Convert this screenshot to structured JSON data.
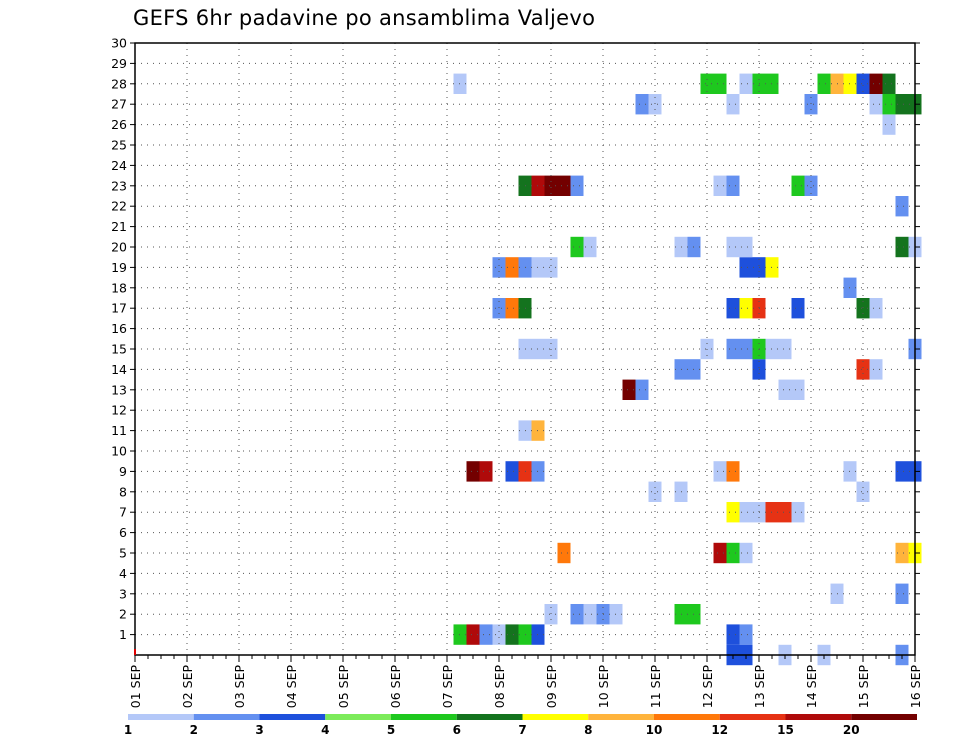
{
  "chart_data": {
    "type": "heatmap",
    "title": "GEFS 6hr padavine po ansamblima Valjevo",
    "xlabel": "",
    "ylabel": "",
    "x_tick_labels": [
      "01 SEP",
      "02 SEP",
      "03 SEP",
      "04 SEP",
      "05 SEP",
      "06 SEP",
      "07 SEP",
      "08 SEP",
      "09 SEP",
      "10 SEP",
      "11 SEP",
      "12 SEP",
      "13 SEP",
      "14 SEP",
      "15 SEP",
      "16 SEP"
    ],
    "y_tick_labels": [
      "1",
      "2",
      "3",
      "4",
      "5",
      "6",
      "7",
      "8",
      "9",
      "10",
      "11",
      "12",
      "13",
      "14",
      "15",
      "16",
      "17",
      "18",
      "19",
      "20",
      "21",
      "22",
      "23",
      "24",
      "25",
      "26",
      "27",
      "28",
      "29",
      "30"
    ],
    "xlim": [
      0,
      60
    ],
    "ylim": [
      0,
      30
    ],
    "grid": true,
    "legend": {
      "placement": "bottom",
      "labels": [
        "1",
        "2",
        "3",
        "4",
        "5",
        "6",
        "7",
        "8",
        "10",
        "12",
        "15",
        "20"
      ],
      "colors": [
        "#b4c8f8",
        "#6490f0",
        "#1e50dc",
        "#7ceb5a",
        "#1ec81e",
        "#14731e",
        "#ffff00",
        "#ffb43c",
        "#ff780a",
        "#e63214",
        "#af0a0a",
        "#730000"
      ]
    },
    "cells": [
      {
        "x": 25,
        "y": 1,
        "v": "5"
      },
      {
        "x": 26,
        "y": 1,
        "v": "15"
      },
      {
        "x": 27,
        "y": 1,
        "v": "2"
      },
      {
        "x": 28,
        "y": 1,
        "v": "1"
      },
      {
        "x": 29,
        "y": 1,
        "v": "6"
      },
      {
        "x": 30,
        "y": 1,
        "v": "5"
      },
      {
        "x": 31,
        "y": 1,
        "v": "3"
      },
      {
        "x": 46,
        "y": 1,
        "v": "3"
      },
      {
        "x": 47,
        "y": 1,
        "v": "2"
      },
      {
        "x": 46,
        "y": 0,
        "v": "3"
      },
      {
        "x": 47,
        "y": 0,
        "v": "3"
      },
      {
        "x": 50,
        "y": 0,
        "v": "1"
      },
      {
        "x": 53,
        "y": 0,
        "v": "1"
      },
      {
        "x": 59,
        "y": 0,
        "v": "2"
      },
      {
        "x": 32,
        "y": 2,
        "v": "1"
      },
      {
        "x": 34,
        "y": 2,
        "v": "2"
      },
      {
        "x": 35,
        "y": 2,
        "v": "1"
      },
      {
        "x": 36,
        "y": 2,
        "v": "2"
      },
      {
        "x": 37,
        "y": 2,
        "v": "1"
      },
      {
        "x": 42,
        "y": 2,
        "v": "5"
      },
      {
        "x": 43,
        "y": 2,
        "v": "5"
      },
      {
        "x": 54,
        "y": 3,
        "v": "1"
      },
      {
        "x": 59,
        "y": 3,
        "v": "2"
      },
      {
        "x": 33,
        "y": 5,
        "v": "10"
      },
      {
        "x": 45,
        "y": 5,
        "v": "15"
      },
      {
        "x": 46,
        "y": 5,
        "v": "5"
      },
      {
        "x": 47,
        "y": 5,
        "v": "1"
      },
      {
        "x": 59,
        "y": 5,
        "v": "8"
      },
      {
        "x": 60,
        "y": 5,
        "v": "7"
      },
      {
        "x": 46,
        "y": 7,
        "v": "7"
      },
      {
        "x": 47,
        "y": 7,
        "v": "1"
      },
      {
        "x": 48,
        "y": 7,
        "v": "1"
      },
      {
        "x": 49,
        "y": 7,
        "v": "12"
      },
      {
        "x": 50,
        "y": 7,
        "v": "12"
      },
      {
        "x": 51,
        "y": 7,
        "v": "1"
      },
      {
        "x": 40,
        "y": 8,
        "v": "1"
      },
      {
        "x": 42,
        "y": 8,
        "v": "1"
      },
      {
        "x": 56,
        "y": 8,
        "v": "1"
      },
      {
        "x": 26,
        "y": 9,
        "v": "20"
      },
      {
        "x": 27,
        "y": 9,
        "v": "15"
      },
      {
        "x": 29,
        "y": 9,
        "v": "3"
      },
      {
        "x": 30,
        "y": 9,
        "v": "12"
      },
      {
        "x": 31,
        "y": 9,
        "v": "2"
      },
      {
        "x": 45,
        "y": 9,
        "v": "1"
      },
      {
        "x": 46,
        "y": 9,
        "v": "10"
      },
      {
        "x": 55,
        "y": 9,
        "v": "1"
      },
      {
        "x": 59,
        "y": 9,
        "v": "3"
      },
      {
        "x": 60,
        "y": 9,
        "v": "3"
      },
      {
        "x": 30,
        "y": 11,
        "v": "1"
      },
      {
        "x": 31,
        "y": 11,
        "v": "8"
      },
      {
        "x": 38,
        "y": 13,
        "v": "20"
      },
      {
        "x": 39,
        "y": 13,
        "v": "2"
      },
      {
        "x": 50,
        "y": 13,
        "v": "1"
      },
      {
        "x": 51,
        "y": 13,
        "v": "1"
      },
      {
        "x": 42,
        "y": 14,
        "v": "2"
      },
      {
        "x": 43,
        "y": 14,
        "v": "2"
      },
      {
        "x": 48,
        "y": 14,
        "v": "3"
      },
      {
        "x": 56,
        "y": 14,
        "v": "12"
      },
      {
        "x": 57,
        "y": 14,
        "v": "1"
      },
      {
        "x": 30,
        "y": 15,
        "v": "1"
      },
      {
        "x": 31,
        "y": 15,
        "v": "1"
      },
      {
        "x": 32,
        "y": 15,
        "v": "1"
      },
      {
        "x": 44,
        "y": 15,
        "v": "1"
      },
      {
        "x": 46,
        "y": 15,
        "v": "2"
      },
      {
        "x": 47,
        "y": 15,
        "v": "2"
      },
      {
        "x": 48,
        "y": 15,
        "v": "5"
      },
      {
        "x": 49,
        "y": 15,
        "v": "1"
      },
      {
        "x": 50,
        "y": 15,
        "v": "1"
      },
      {
        "x": 60,
        "y": 15,
        "v": "2"
      },
      {
        "x": 28,
        "y": 17,
        "v": "2"
      },
      {
        "x": 29,
        "y": 17,
        "v": "10"
      },
      {
        "x": 30,
        "y": 17,
        "v": "6"
      },
      {
        "x": 46,
        "y": 17,
        "v": "3"
      },
      {
        "x": 47,
        "y": 17,
        "v": "7"
      },
      {
        "x": 48,
        "y": 17,
        "v": "12"
      },
      {
        "x": 51,
        "y": 17,
        "v": "3"
      },
      {
        "x": 56,
        "y": 17,
        "v": "6"
      },
      {
        "x": 57,
        "y": 17,
        "v": "1"
      },
      {
        "x": 55,
        "y": 18,
        "v": "2"
      },
      {
        "x": 28,
        "y": 19,
        "v": "2"
      },
      {
        "x": 29,
        "y": 19,
        "v": "10"
      },
      {
        "x": 30,
        "y": 19,
        "v": "2"
      },
      {
        "x": 31,
        "y": 19,
        "v": "1"
      },
      {
        "x": 32,
        "y": 19,
        "v": "1"
      },
      {
        "x": 47,
        "y": 19,
        "v": "3"
      },
      {
        "x": 48,
        "y": 19,
        "v": "3"
      },
      {
        "x": 49,
        "y": 19,
        "v": "7"
      },
      {
        "x": 34,
        "y": 20,
        "v": "5"
      },
      {
        "x": 35,
        "y": 20,
        "v": "1"
      },
      {
        "x": 42,
        "y": 20,
        "v": "1"
      },
      {
        "x": 43,
        "y": 20,
        "v": "2"
      },
      {
        "x": 46,
        "y": 20,
        "v": "1"
      },
      {
        "x": 47,
        "y": 20,
        "v": "1"
      },
      {
        "x": 59,
        "y": 20,
        "v": "6"
      },
      {
        "x": 60,
        "y": 20,
        "v": "1"
      },
      {
        "x": 59,
        "y": 22,
        "v": "2"
      },
      {
        "x": 30,
        "y": 23,
        "v": "6"
      },
      {
        "x": 31,
        "y": 23,
        "v": "15"
      },
      {
        "x": 32,
        "y": 23,
        "v": "20"
      },
      {
        "x": 33,
        "y": 23,
        "v": "20"
      },
      {
        "x": 34,
        "y": 23,
        "v": "2"
      },
      {
        "x": 45,
        "y": 23,
        "v": "1"
      },
      {
        "x": 46,
        "y": 23,
        "v": "2"
      },
      {
        "x": 51,
        "y": 23,
        "v": "5"
      },
      {
        "x": 52,
        "y": 23,
        "v": "2"
      },
      {
        "x": 58,
        "y": 26,
        "v": "1"
      },
      {
        "x": 39,
        "y": 27,
        "v": "2"
      },
      {
        "x": 40,
        "y": 27,
        "v": "1"
      },
      {
        "x": 46,
        "y": 27,
        "v": "1"
      },
      {
        "x": 52,
        "y": 27,
        "v": "2"
      },
      {
        "x": 57,
        "y": 27,
        "v": "1"
      },
      {
        "x": 58,
        "y": 27,
        "v": "5"
      },
      {
        "x": 59,
        "y": 27,
        "v": "6"
      },
      {
        "x": 60,
        "y": 27,
        "v": "6"
      },
      {
        "x": 25,
        "y": 28,
        "v": "1"
      },
      {
        "x": 44,
        "y": 28,
        "v": "5"
      },
      {
        "x": 45,
        "y": 28,
        "v": "5"
      },
      {
        "x": 47,
        "y": 28,
        "v": "1"
      },
      {
        "x": 48,
        "y": 28,
        "v": "5"
      },
      {
        "x": 49,
        "y": 28,
        "v": "5"
      },
      {
        "x": 53,
        "y": 28,
        "v": "5"
      },
      {
        "x": 54,
        "y": 28,
        "v": "8"
      },
      {
        "x": 55,
        "y": 28,
        "v": "7"
      },
      {
        "x": 56,
        "y": 28,
        "v": "3"
      },
      {
        "x": 57,
        "y": 28,
        "v": "20"
      },
      {
        "x": 58,
        "y": 28,
        "v": "6"
      }
    ]
  }
}
